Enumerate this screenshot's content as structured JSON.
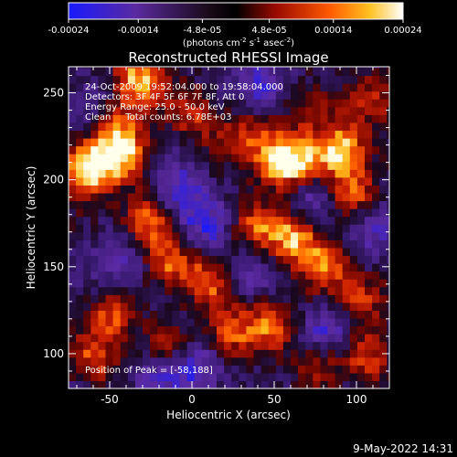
{
  "chart_data": {
    "type": "heatmap",
    "title": "Reconstructed RHESSI Image",
    "xlabel": "Heliocentric X (arcsec)",
    "ylabel": "Heliocentric Y (arcsec)",
    "xlim": [
      -75,
      120
    ],
    "ylim": [
      80,
      265
    ],
    "x_ticks": [
      -50,
      0,
      50,
      100
    ],
    "y_ticks": [
      100,
      150,
      200,
      250
    ],
    "colorbar": {
      "range": [
        -0.00024,
        0.00024
      ],
      "tick_labels": [
        "-0.00024",
        "-0.00014",
        "-4.8e-05",
        "4.8e-05",
        "0.00014",
        "0.00024"
      ],
      "label_main": "(photons cm",
      "label_exp1": "-2",
      "label_mid": " s",
      "label_exp2": "-1",
      "label_mid2": " asec",
      "label_exp3": "-2",
      "label_end": ")"
    },
    "annotations": {
      "time": "24-Oct-2009 19:52:04.000 to 19:58:04.000",
      "detectors": "Detectors: 3F 4F 5F 6F 7F 8F, Att 0",
      "energy": "Energy Range: 25.0 - 50.0 keV",
      "clean": "Clean     Total counts: 6.78E+03",
      "peak": "Position of Peak = [-58,188]"
    },
    "footer_date": "9-May-2022 14:31",
    "hotspots": [
      {
        "x": -65,
        "y": 205,
        "v": 1.0
      },
      {
        "x": -45,
        "y": 215,
        "v": 0.75
      },
      {
        "x": -35,
        "y": 255,
        "v": 0.8
      },
      {
        "x": -50,
        "y": 235,
        "v": 0.55
      },
      {
        "x": -30,
        "y": 175,
        "v": 0.7
      },
      {
        "x": -15,
        "y": 150,
        "v": 0.65
      },
      {
        "x": 10,
        "y": 140,
        "v": 0.55
      },
      {
        "x": 0,
        "y": 235,
        "v": 0.5
      },
      {
        "x": 30,
        "y": 225,
        "v": 0.45
      },
      {
        "x": 50,
        "y": 210,
        "v": 0.85
      },
      {
        "x": 65,
        "y": 205,
        "v": 0.6
      },
      {
        "x": 90,
        "y": 215,
        "v": 0.8
      },
      {
        "x": 95,
        "y": 190,
        "v": 0.6
      },
      {
        "x": 60,
        "y": 165,
        "v": 0.75
      },
      {
        "x": 35,
        "y": 170,
        "v": 0.5
      },
      {
        "x": 80,
        "y": 150,
        "v": 0.55
      },
      {
        "x": 100,
        "y": 130,
        "v": 0.55
      },
      {
        "x": 20,
        "y": 110,
        "v": 0.6
      },
      {
        "x": 45,
        "y": 115,
        "v": 0.55
      },
      {
        "x": -50,
        "y": 120,
        "v": 0.55
      },
      {
        "x": -60,
        "y": 95,
        "v": 0.5
      },
      {
        "x": 75,
        "y": 95,
        "v": 0.5
      },
      {
        "x": 105,
        "y": 95,
        "v": 0.45
      },
      {
        "x": -20,
        "y": 100,
        "v": 0.4
      },
      {
        "x": 70,
        "y": 240,
        "v": 0.45
      },
      {
        "x": 110,
        "y": 245,
        "v": 0.4
      }
    ],
    "coldspots": [
      {
        "x": -60,
        "y": 240,
        "v": -0.5
      },
      {
        "x": -10,
        "y": 190,
        "v": -0.55
      },
      {
        "x": 5,
        "y": 170,
        "v": -0.45
      },
      {
        "x": 70,
        "y": 190,
        "v": -0.5
      },
      {
        "x": 80,
        "y": 110,
        "v": -0.55
      },
      {
        "x": 0,
        "y": 90,
        "v": -0.5
      },
      {
        "x": -45,
        "y": 150,
        "v": -0.45
      },
      {
        "x": 40,
        "y": 250,
        "v": -0.5
      },
      {
        "x": 105,
        "y": 170,
        "v": -0.45
      },
      {
        "x": 30,
        "y": 145,
        "v": -0.4
      },
      {
        "x": -25,
        "y": 85,
        "v": -0.45
      }
    ]
  }
}
